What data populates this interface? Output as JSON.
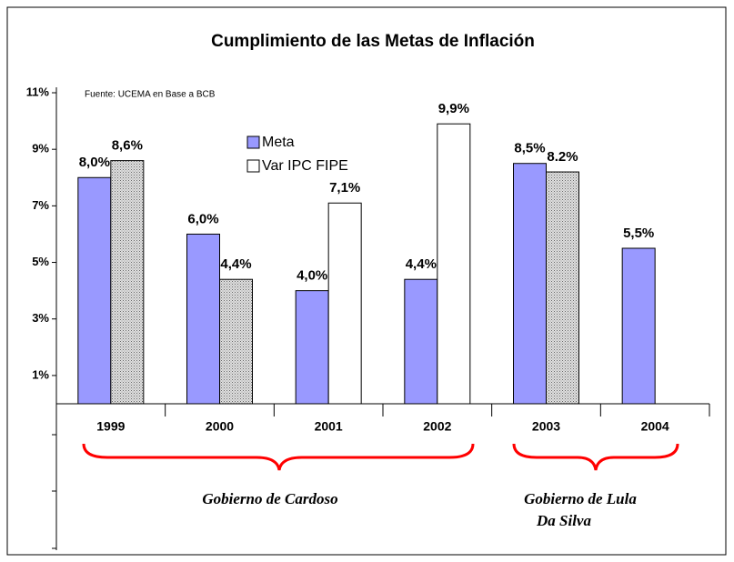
{
  "chart_data": {
    "type": "bar",
    "title": "Cumplimiento de las Metas de Inflación",
    "source": "Fuente: UCEMA en Base a BCB",
    "categories": [
      "1999",
      "2000",
      "2001",
      "2002",
      "2003",
      "2004"
    ],
    "series": [
      {
        "name": "Meta",
        "color": "#9999ff",
        "values": [
          8.0,
          6.0,
          4.0,
          4.4,
          8.5,
          5.5
        ],
        "value_labels": [
          "8,0%",
          "6,0%",
          "4,0%",
          "4,4%",
          "8,5%",
          "5,5%"
        ]
      },
      {
        "name": "Var IPC FIPE",
        "color": "#ffffff",
        "values": [
          8.6,
          4.4,
          7.1,
          9.9,
          8.2,
          null
        ],
        "value_labels": [
          "8,6%",
          "4,4%",
          "7,1%",
          "9,9%",
          "8.2%",
          null
        ],
        "hatched": [
          true,
          true,
          false,
          false,
          true,
          false
        ]
      }
    ],
    "ylim": [
      0,
      11
    ],
    "yticks": [
      {
        "value": 1,
        "label": "1%"
      },
      {
        "value": 3,
        "label": "3%"
      },
      {
        "value": 5,
        "label": "5%"
      },
      {
        "value": 7,
        "label": "7%"
      },
      {
        "value": 9,
        "label": "9%"
      },
      {
        "value": 11,
        "label": "11%"
      }
    ],
    "grid": false,
    "annotations": [
      "Gobierno de Cardoso",
      "Gobierno de Lula",
      "Da Silva"
    ]
  }
}
